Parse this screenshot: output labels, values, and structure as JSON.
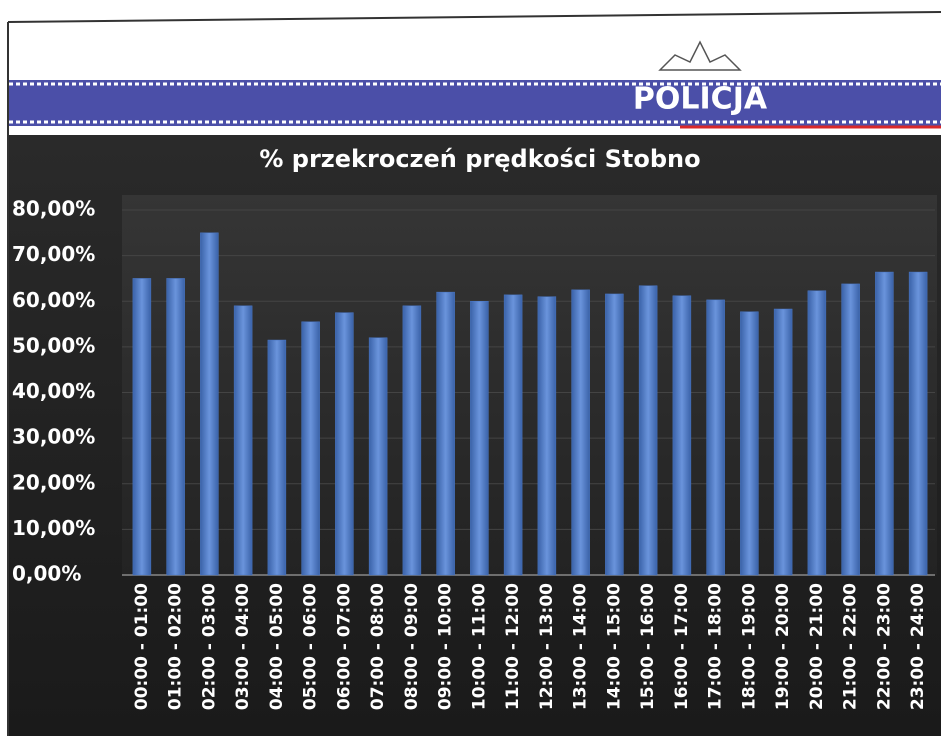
{
  "header": {
    "text": "POLICJA"
  },
  "chart_data": {
    "type": "bar",
    "title": "% przekroczeń prędkości Stobno",
    "categories": [
      "00:00 - 01:00",
      "01:00 - 02:00",
      "02:00 - 03:00",
      "03:00 - 04:00",
      "04:00 - 05:00",
      "05:00 - 06:00",
      "06:00 - 07:00",
      "07:00 - 08:00",
      "08:00 - 09:00",
      "09:00 - 10:00",
      "10:00 - 11:00",
      "11:00 - 12:00",
      "12:00 - 13:00",
      "13:00 - 14:00",
      "14:00 - 15:00",
      "15:00 - 16:00",
      "16:00 - 17:00",
      "17:00 - 18:00",
      "18:00 - 19:00",
      "19:00 - 20:00",
      "20:00 - 21:00",
      "21:00 - 22:00",
      "22:00 - 23:00",
      "23:00 - 24:00"
    ],
    "values": [
      65,
      65,
      75,
      59,
      51.5,
      55.5,
      57.5,
      52,
      59,
      62,
      60,
      61.4,
      61,
      62.5,
      61.6,
      63.4,
      61.2,
      60.3,
      57.7,
      58.3,
      62.3,
      63.8,
      66.4,
      66.4
    ],
    "color": "#4a78c8",
    "ylim": [
      0,
      80
    ],
    "yticks": [
      {
        "value": 0,
        "label": "0,00%"
      },
      {
        "value": 10,
        "label": "10,00%"
      },
      {
        "value": 20,
        "label": "20,00%"
      },
      {
        "value": 30,
        "label": "30,00%"
      },
      {
        "value": 40,
        "label": "40,00%"
      },
      {
        "value": 50,
        "label": "50,00%"
      },
      {
        "value": 60,
        "label": "60,00%"
      },
      {
        "value": 70,
        "label": "70,00%"
      },
      {
        "value": 80,
        "label": "80,00%"
      }
    ],
    "grid": true
  }
}
